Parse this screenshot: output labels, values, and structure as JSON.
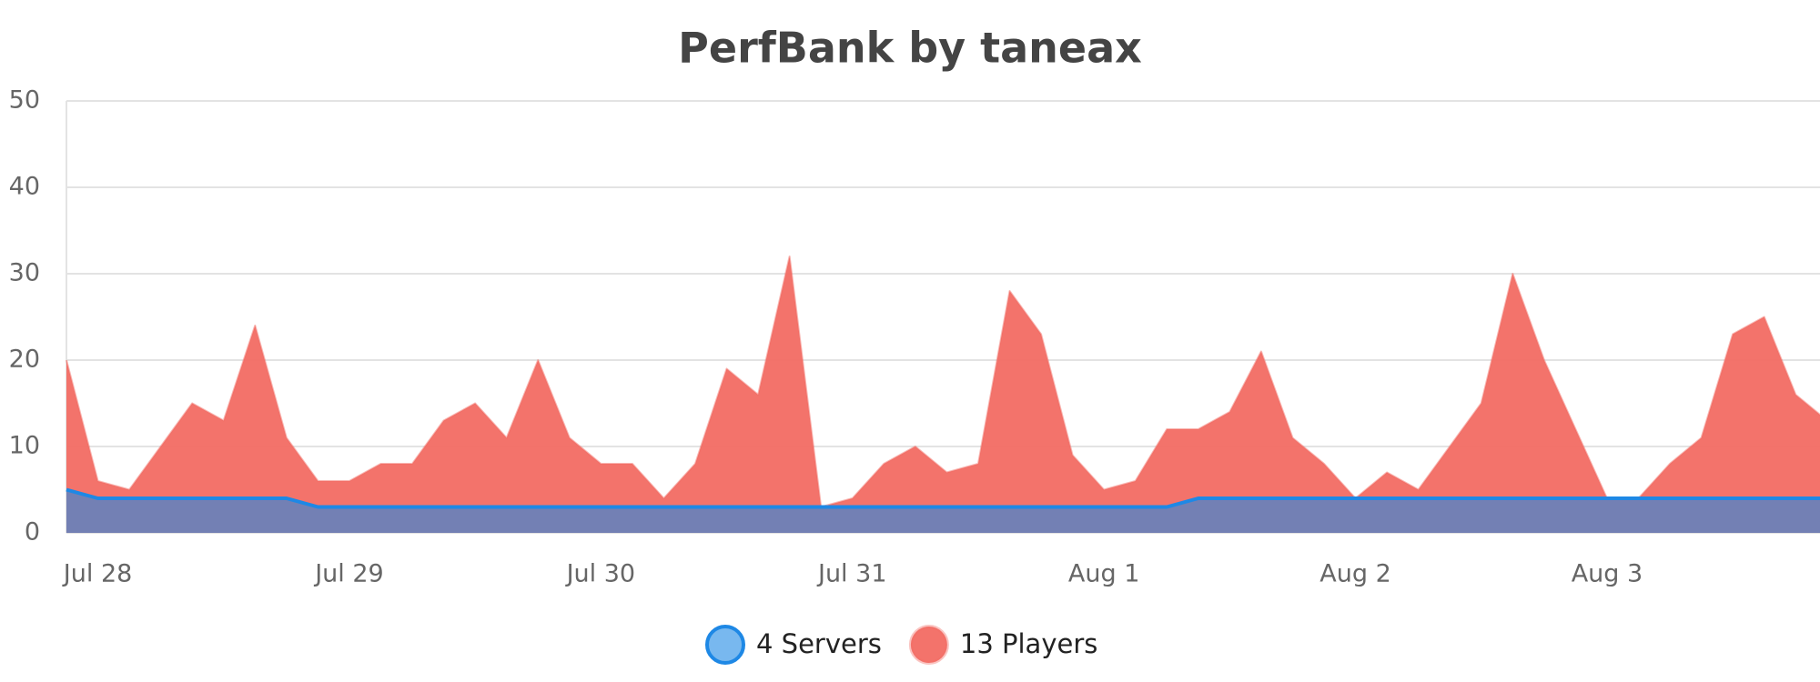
{
  "chart_data": {
    "type": "area",
    "title": "PerfBank by taneax",
    "categories": [
      null,
      "Jul 28",
      null,
      null,
      null,
      null,
      null,
      null,
      null,
      "Jul 29",
      null,
      null,
      null,
      null,
      null,
      null,
      null,
      "Jul 30",
      null,
      null,
      null,
      null,
      null,
      null,
      null,
      "Jul 31",
      null,
      null,
      null,
      null,
      null,
      null,
      null,
      "Aug 1",
      null,
      null,
      null,
      null,
      null,
      null,
      null,
      "Aug 2",
      null,
      null,
      null,
      null,
      null,
      null,
      null,
      "Aug 3",
      null,
      null,
      null,
      null,
      null,
      null,
      null
    ],
    "series": [
      {
        "name": "4 Servers",
        "color": "#1e88e5",
        "values": [
          5,
          4,
          4,
          4,
          4,
          4,
          4,
          4,
          3,
          3,
          3,
          3,
          3,
          3,
          3,
          3,
          3,
          3,
          3,
          3,
          3,
          3,
          3,
          3,
          3,
          3,
          3,
          3,
          3,
          3,
          3,
          3,
          3,
          3,
          3,
          3,
          4,
          4,
          4,
          4,
          4,
          4,
          4,
          4,
          4,
          4,
          4,
          4,
          4,
          4,
          4,
          4,
          4,
          4,
          4,
          4,
          4
        ]
      },
      {
        "name": "13 Players",
        "color": "#f26b63",
        "values": [
          20,
          6,
          5,
          10,
          15,
          13,
          24,
          11,
          6,
          6,
          8,
          8,
          13,
          15,
          11,
          20,
          11,
          8,
          8,
          4,
          8,
          19,
          16,
          32,
          3,
          4,
          8,
          10,
          7,
          8,
          28,
          23,
          9,
          5,
          6,
          12,
          12,
          14,
          21,
          11,
          8,
          4,
          7,
          5,
          10,
          15,
          30,
          20,
          12,
          4,
          4,
          8,
          11,
          23,
          25,
          16,
          13
        ]
      }
    ],
    "ylim": [
      0,
      50
    ],
    "yticks": [
      0,
      10,
      20,
      30,
      40,
      50
    ],
    "grid": true
  }
}
